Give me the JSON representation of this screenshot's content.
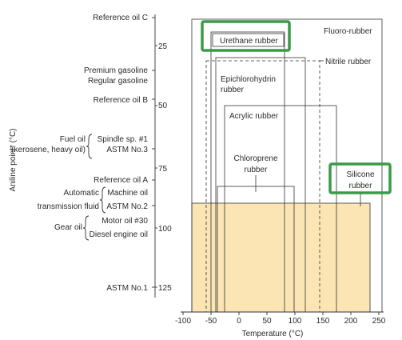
{
  "y_axis": {
    "title": "Aniline point* (°C)",
    "ticks": [
      "25",
      "50",
      "75",
      "100",
      "125"
    ]
  },
  "x_axis": {
    "title": "Temperature (°C)",
    "ticks": [
      "-100",
      "-50",
      "0",
      "50",
      "100",
      "150",
      "200",
      "250"
    ]
  },
  "oils": {
    "reference_c": "Reference oil C",
    "premium_gasoline": "Premium gasoline",
    "regular_gasoline": "Regular gasoline",
    "reference_b": "Reference oil B",
    "fuel_oil": "Fuel oil",
    "kerosene": "(kerosene, heavy oil)",
    "spindle": "Spindle sp. #1",
    "astm3": "ASTM No.3",
    "reference_a": "Reference oil A",
    "automatic": "Automatic",
    "transmission": "transmission fluid",
    "machine_oil": "Machine oil",
    "astm2": "ASTM No.2",
    "gear_oil": "Gear oil",
    "motor_oil": "Motor oil #30",
    "diesel": "Diesel engine oil",
    "astm1": "ASTM No.1"
  },
  "rubbers": {
    "fluoro": "Fluoro-rubber",
    "urethane": "Urethane rubber",
    "nitrile": "Nitrile rubber",
    "epichloro_1": "Epichlorohydrin",
    "epichloro_2": "rubber",
    "acrylic": "Acrylic rubber",
    "chloroprene_1": "Chloroprene",
    "chloroprene_2": "rubber",
    "silicone_1": "Silicone",
    "silicone_2": "rubber"
  },
  "colors": {
    "silicone_fill": "#fbe5b4",
    "highlight": "#3a9a48",
    "line": "#333333"
  }
}
